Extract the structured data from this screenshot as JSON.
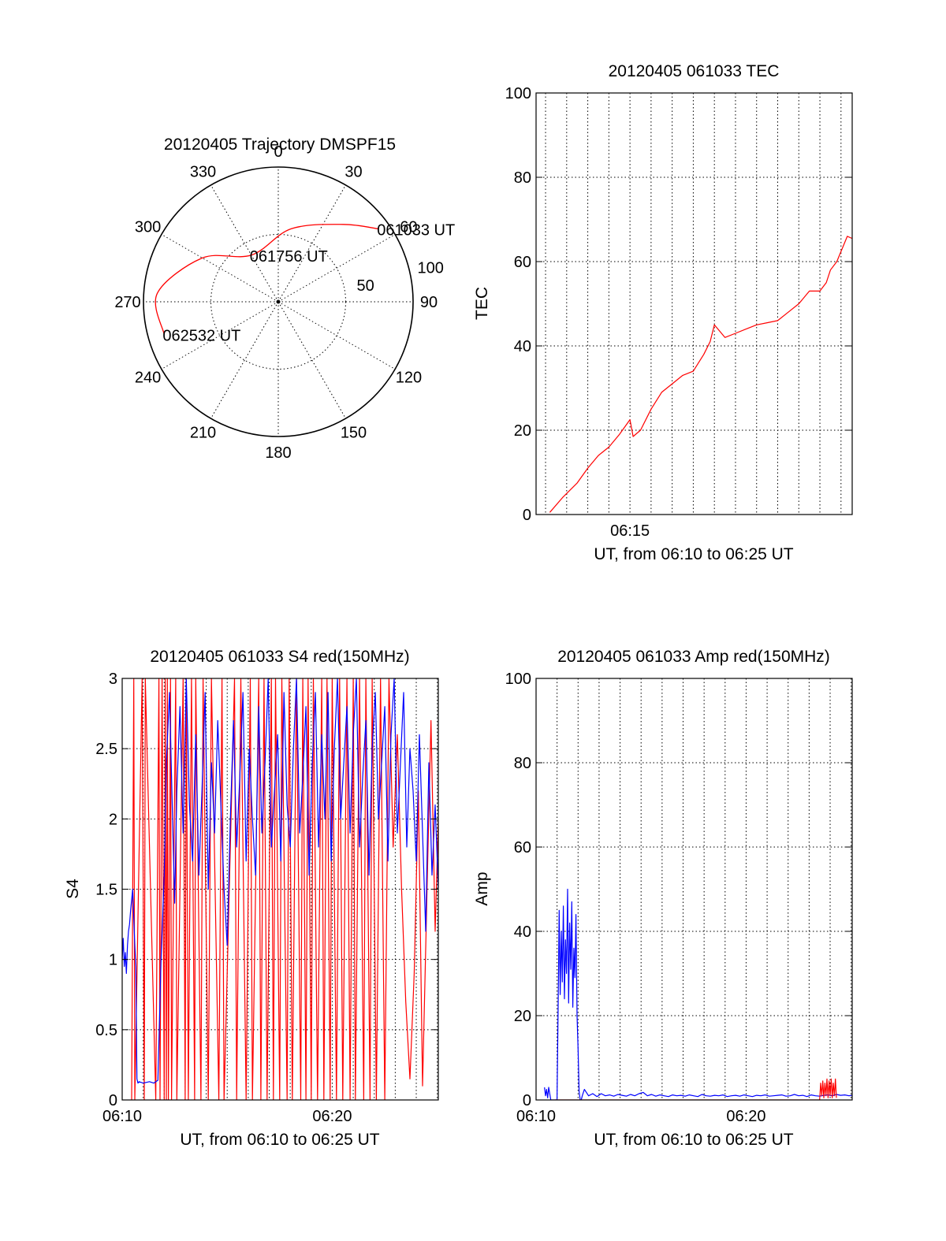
{
  "chart_data": [
    {
      "type": "polar",
      "title": "20120405 Trajectory DMSPF15",
      "azimuth_labels": [
        "0",
        "30",
        "60",
        "90",
        "120",
        "150",
        "180",
        "210",
        "240",
        "270",
        "300",
        "330"
      ],
      "azimuths_deg": [
        0,
        30,
        60,
        90,
        120,
        150,
        180,
        210,
        240,
        270,
        300,
        330
      ],
      "radial_labels": [
        "50",
        "100"
      ],
      "radial_values": [
        50,
        100
      ],
      "rmax": 100,
      "track": {
        "color": "#ff0000",
        "points": [
          {
            "az": 54,
            "r": 92
          },
          {
            "az": 40,
            "r": 75
          },
          {
            "az": 10,
            "r": 55
          },
          {
            "az": -30,
            "r": 40
          },
          {
            "az": -60,
            "r": 65
          },
          {
            "az": -86,
            "r": 90
          },
          {
            "az": -106,
            "r": 88
          }
        ]
      },
      "annotations": [
        {
          "text": "061033 UT",
          "az": 54,
          "r": 92
        },
        {
          "text": "061756 UT",
          "az": -30,
          "r": 40
        },
        {
          "text": "062532 UT",
          "az": -106,
          "r": 88
        }
      ]
    },
    {
      "type": "line",
      "title": "20120405 061033 TEC",
      "xlabel": "UT, from 06:10 to 06:25 UT",
      "ylabel": "TEC",
      "xlim": [
        10.55,
        25.53
      ],
      "ylim": [
        0,
        100
      ],
      "xticks": [
        {
          "value": 15,
          "label": "06:15"
        }
      ],
      "yticks": [
        {
          "value": 0,
          "label": "0"
        },
        {
          "value": 20,
          "label": "20"
        },
        {
          "value": 40,
          "label": "40"
        },
        {
          "value": 60,
          "label": "60"
        },
        {
          "value": 80,
          "label": "80"
        },
        {
          "value": 100,
          "label": "100"
        }
      ],
      "xgrid": [
        11,
        12,
        13,
        14,
        15,
        16,
        17,
        18,
        19,
        20,
        21,
        22,
        23,
        24,
        25
      ],
      "ygrid": [
        20,
        40,
        60,
        80
      ],
      "series": [
        {
          "color": "#ff0000",
          "x": [
            11.2,
            11.8,
            12.5,
            13.0,
            13.5,
            14.0,
            14.5,
            15.0,
            15.15,
            15.5,
            16.0,
            16.5,
            17.0,
            17.5,
            18.0,
            18.5,
            18.8,
            19.0,
            19.5,
            20.0,
            20.5,
            21.0,
            21.5,
            22.0,
            22.5,
            23.0,
            23.5,
            24.0,
            24.3,
            24.5,
            24.8,
            25.3,
            25.53
          ],
          "y": [
            0.5,
            4,
            7.5,
            11,
            14,
            16,
            19,
            22.5,
            18.5,
            20,
            25,
            29,
            31,
            33,
            34,
            38,
            41,
            45,
            42,
            43,
            44,
            45,
            45.5,
            46,
            48,
            50,
            53,
            53,
            55,
            58,
            60,
            66,
            65.5
          ]
        }
      ]
    },
    {
      "type": "line",
      "title": "20120405 061033 S4 red(150MHz)",
      "xlabel": "UT, from 06:10 to 06:25 UT",
      "ylabel": "S4",
      "xlim": [
        10,
        25.05
      ],
      "ylim": [
        0,
        3
      ],
      "xticks": [
        {
          "value": 10,
          "label": "06:10"
        },
        {
          "value": 20,
          "label": "06:20"
        }
      ],
      "yticks": [
        {
          "value": 0,
          "label": "0"
        },
        {
          "value": 0.5,
          "label": "0.5"
        },
        {
          "value": 1,
          "label": "1"
        },
        {
          "value": 1.5,
          "label": "1.5"
        },
        {
          "value": 2,
          "label": "2"
        },
        {
          "value": 2.5,
          "label": "2.5"
        },
        {
          "value": 3,
          "label": "3"
        }
      ],
      "xgrid": [
        11,
        12,
        13,
        14,
        15,
        16,
        17,
        18,
        19,
        20,
        21,
        22,
        23,
        24,
        25
      ],
      "ygrid": [
        0.5,
        1,
        1.5,
        2,
        2.5
      ],
      "series": [
        {
          "color": "#ff0000",
          "x": [
            10.45,
            10.55,
            10.6,
            10.95,
            11.05,
            11.1,
            11.6,
            11.75,
            11.8,
            11.9,
            12.0,
            12.05,
            12.1,
            12.15,
            12.2,
            12.3,
            12.35,
            12.55,
            12.6,
            12.9,
            13.0,
            13.05,
            13.15,
            13.3,
            13.45,
            13.5,
            13.75,
            13.85,
            14.1,
            14.25,
            14.6,
            14.75,
            14.85,
            15.35,
            15.45,
            15.65,
            15.9,
            16.1,
            16.2,
            16.5,
            16.6,
            16.75,
            16.9,
            17.1,
            17.2,
            17.3,
            17.5,
            17.6,
            17.85,
            17.95,
            18.1,
            18.3,
            18.5,
            18.6,
            18.75,
            18.85,
            19.0,
            19.1,
            19.3,
            19.5,
            19.6,
            19.75,
            19.9,
            20.0,
            20.2,
            20.35,
            20.5,
            20.7,
            20.85,
            21.0,
            21.1,
            21.3,
            21.5,
            21.6,
            21.8,
            21.9,
            22.1,
            22.3,
            22.5,
            22.7,
            22.9,
            23.1,
            23.3,
            23.5,
            23.7,
            23.9,
            24.1,
            24.3,
            24.5,
            24.7,
            24.9,
            25.05
          ],
          "y": [
            0,
            3,
            0,
            3,
            0,
            3,
            0,
            3,
            0,
            3,
            0,
            3,
            0,
            3,
            0,
            3,
            0,
            3,
            0,
            3,
            0,
            3,
            0,
            3,
            0,
            3,
            0,
            3,
            0,
            3,
            0,
            3,
            0,
            3,
            0,
            3,
            0,
            3,
            0,
            3,
            0,
            3,
            0,
            3,
            0,
            3,
            0,
            3,
            0,
            3,
            0,
            3,
            0,
            3,
            0,
            3,
            0,
            3,
            0,
            3,
            0,
            3,
            0,
            3,
            0,
            3,
            0,
            3,
            0,
            3,
            0,
            3,
            0,
            3,
            0,
            3,
            0,
            3,
            0,
            3,
            1.8,
            2.6,
            1.5,
            0.7,
            0.15,
            0.9,
            2.2,
            0.1,
            1.4,
            2.7,
            1.2,
            2.0
          ]
        },
        {
          "color": "#0000ff",
          "x": [
            10.0,
            10.05,
            10.1,
            10.15,
            10.2,
            10.25,
            10.3,
            10.35,
            10.4,
            10.5,
            10.6,
            10.65,
            10.7,
            10.75,
            10.8,
            11.0,
            11.3,
            11.5,
            11.7,
            11.85,
            12.0,
            12.1,
            12.25,
            12.4,
            12.5,
            12.6,
            12.75,
            12.9,
            13.05,
            13.2,
            13.35,
            13.5,
            13.65,
            13.8,
            13.95,
            14.1,
            14.25,
            14.4,
            14.55,
            14.7,
            14.85,
            15.0,
            15.15,
            15.3,
            15.45,
            15.6,
            15.75,
            15.9,
            16.05,
            16.2,
            16.35,
            16.5,
            16.65,
            16.8,
            16.95,
            17.1,
            17.25,
            17.4,
            17.55,
            17.7,
            17.85,
            18.0,
            18.15,
            18.3,
            18.45,
            18.6,
            18.75,
            18.9,
            19.05,
            19.2,
            19.35,
            19.5,
            19.65,
            19.8,
            19.95,
            20.1,
            20.25,
            20.4,
            20.55,
            20.7,
            20.85,
            21.0,
            21.15,
            21.3,
            21.45,
            21.6,
            21.75,
            21.9,
            22.05,
            22.2,
            22.35,
            22.5,
            22.65,
            22.8,
            22.95,
            23.1,
            23.25,
            23.4,
            23.55,
            23.7,
            23.85,
            24.0,
            24.15,
            24.3,
            24.45,
            24.6,
            24.75,
            24.9,
            25.05
          ],
          "y": [
            1.0,
            1.15,
            0.95,
            1.05,
            0.9,
            1.1,
            1.2,
            1.25,
            1.35,
            1.5,
            1.1,
            0.95,
            0.15,
            0.12,
            0.13,
            0.12,
            0.13,
            0.12,
            0.14,
            1.0,
            1.6,
            2.4,
            2.9,
            2.0,
            1.4,
            2.2,
            2.8,
            1.9,
            3.0,
            2.1,
            1.7,
            2.6,
            1.6,
            2.2,
            2.9,
            1.5,
            2.4,
            1.9,
            2.7,
            2.1,
            1.5,
            1.1,
            2.0,
            2.7,
            1.8,
            2.3,
            2.9,
            1.7,
            2.5,
            2.0,
            1.6,
            2.8,
            1.9,
            2.4,
            3.0,
            1.8,
            2.2,
            2.6,
            1.7,
            2.9,
            2.1,
            1.8,
            2.5,
            3.0,
            1.9,
            2.3,
            2.8,
            1.6,
            2.4,
            2.9,
            1.8,
            2.6,
            2.0,
            2.9,
            1.7,
            2.5,
            3.0,
            2.0,
            2.4,
            2.8,
            1.9,
            2.6,
            3.0,
            1.8,
            2.3,
            2.7,
            1.6,
            2.5,
            2.9,
            2.0,
            2.4,
            2.8,
            1.7,
            2.6,
            3.0,
            1.9,
            2.4,
            2.9,
            1.8,
            2.5,
            2.2,
            1.7,
            2.6,
            1.9,
            1.2,
            2.4,
            1.6,
            2.1,
            1.5
          ]
        }
      ]
    },
    {
      "type": "line",
      "title": "20120405 061033 Amp red(150MHz)",
      "xlabel": "UT, from 06:10 to 06:25 UT",
      "ylabel": "Amp",
      "xlim": [
        10,
        25.05
      ],
      "ylim": [
        0,
        100
      ],
      "xticks": [
        {
          "value": 10,
          "label": "06:10"
        },
        {
          "value": 20,
          "label": "06:20"
        }
      ],
      "yticks": [
        {
          "value": 0,
          "label": "0"
        },
        {
          "value": 20,
          "label": "20"
        },
        {
          "value": 40,
          "label": "40"
        },
        {
          "value": 60,
          "label": "60"
        },
        {
          "value": 80,
          "label": "80"
        },
        {
          "value": 100,
          "label": "100"
        }
      ],
      "xgrid": [
        11,
        12,
        13,
        14,
        15,
        16,
        17,
        18,
        19,
        20,
        21,
        22,
        23,
        24,
        25
      ],
      "ygrid": [
        20,
        40,
        60,
        80
      ],
      "series": [
        {
          "color": "#0000ff",
          "x": [
            10.4,
            10.45,
            10.5,
            10.55,
            10.6,
            10.7,
            10.75,
            10.8,
            10.85,
            10.9,
            10.95,
            11.0,
            11.05,
            11.1,
            11.15,
            11.2,
            11.25,
            11.3,
            11.35,
            11.4,
            11.45,
            11.5,
            11.55,
            11.6,
            11.65,
            11.7,
            11.75,
            11.8,
            11.85,
            11.9,
            11.95,
            12.0,
            12.05,
            12.1,
            12.15,
            12.2,
            12.3,
            12.5,
            12.7,
            12.9,
            13.1,
            13.3,
            13.5,
            13.7,
            13.9,
            14.1,
            14.3,
            14.5,
            14.7,
            14.9,
            15.1,
            15.3,
            15.5,
            15.7,
            15.9,
            16.1,
            16.3,
            16.5,
            16.7,
            16.9,
            17.1,
            17.3,
            17.5,
            17.7,
            17.9,
            18.1,
            18.3,
            18.5,
            18.7,
            18.9,
            19.1,
            19.3,
            19.5,
            19.7,
            19.9,
            20.1,
            20.3,
            20.5,
            20.7,
            20.9,
            21.1,
            21.3,
            21.5,
            21.7,
            21.9,
            22.1,
            22.3,
            22.5,
            22.7,
            22.9,
            23.1,
            23.3,
            23.5,
            23.7,
            23.9,
            24.1,
            24.3,
            24.5,
            24.7,
            24.9,
            25.05
          ],
          "y": [
            3,
            1,
            2.5,
            0.5,
            3,
            0,
            0,
            0,
            0,
            0,
            0,
            0,
            22,
            45,
            25,
            40,
            28,
            46,
            24,
            38,
            30,
            50,
            23,
            42,
            31,
            47,
            22,
            36,
            29,
            44,
            20,
            12,
            2,
            0,
            0,
            1,
            2.5,
            1,
            1.5,
            0.8,
            1.5,
            1,
            1.2,
            0.9,
            1.3,
            1.1,
            0.9,
            1.3,
            1.0,
            1.5,
            1.8,
            1.0,
            1.3,
            0.9,
            1.2,
            1.0,
            0.8,
            1.2,
            1.0,
            1.1,
            0.9,
            1.2,
            1.0,
            0.8,
            1.3,
            1.0,
            0.9,
            1.1,
            1.0,
            1.2,
            0.8,
            1.0,
            1.1,
            0.9,
            1.2,
            1.0,
            0.8,
            1.1,
            1.0,
            1.2,
            0.9,
            1.0,
            1.1,
            1.2,
            0.9,
            1.0,
            1.3,
            1.0,
            1.1,
            0.8,
            1.2,
            1.0,
            0.9,
            1.1,
            1.2,
            1.0,
            1.3,
            1.1,
            1.2,
            1.0,
            1.1
          ]
        },
        {
          "color": "#ff0000",
          "x": [
            10.9,
            11.9,
            23.5,
            23.55,
            23.6,
            23.65,
            23.7,
            23.75,
            23.8,
            23.85,
            23.9,
            23.95,
            24.0,
            24.05,
            24.1,
            24.15,
            24.2,
            24.25,
            24.3
          ],
          "y": [
            0,
            0,
            0,
            4,
            1,
            4.5,
            0.5,
            4,
            1,
            5,
            0.5,
            4.5,
            1,
            5,
            0.5,
            4,
            1,
            5,
            0.5
          ]
        }
      ]
    }
  ]
}
